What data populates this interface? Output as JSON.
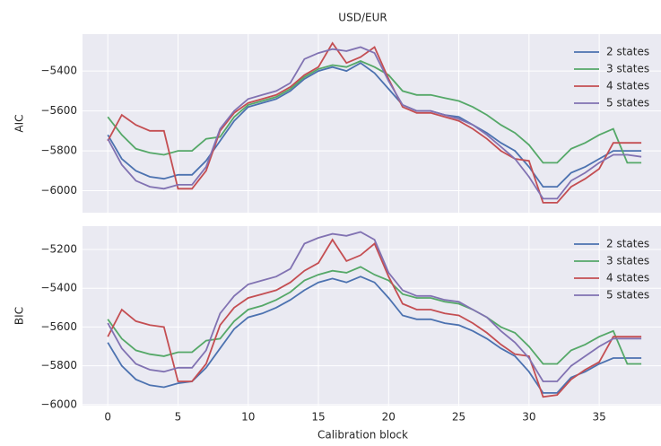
{
  "chart_data": [
    {
      "type": "line",
      "title": "USD/EUR",
      "ylabel": "AIC",
      "x": [
        0,
        1,
        2,
        3,
        4,
        5,
        6,
        7,
        8,
        9,
        10,
        11,
        12,
        13,
        14,
        15,
        16,
        17,
        18,
        19,
        20,
        21,
        22,
        23,
        24,
        25,
        26,
        27,
        28,
        29,
        30,
        31,
        32,
        33,
        34,
        35,
        36,
        37,
        38
      ],
      "xlim": [
        -1.8,
        39.4
      ],
      "xticks": [
        0,
        5,
        10,
        15,
        20,
        25,
        30,
        35
      ],
      "ylim": [
        -6110,
        -5215
      ],
      "yticks": [
        {
          "value": -6000,
          "label": "−6000"
        },
        {
          "value": -5800,
          "label": "−5800"
        },
        {
          "value": -5600,
          "label": "−5600"
        },
        {
          "value": -5400,
          "label": "−5400"
        }
      ],
      "grid": true,
      "legend": "upper right",
      "series": [
        {
          "name": "2 states",
          "color": "#4c72b0",
          "values": [
            -5720,
            -5840,
            -5900,
            -5930,
            -5940,
            -5920,
            -5920,
            -5850,
            -5750,
            -5650,
            -5580,
            -5560,
            -5540,
            -5500,
            -5440,
            -5400,
            -5380,
            -5400,
            -5360,
            -5410,
            -5490,
            -5570,
            -5600,
            -5600,
            -5620,
            -5630,
            -5670,
            -5710,
            -5760,
            -5800,
            -5880,
            -5980,
            -5980,
            -5910,
            -5880,
            -5840,
            -5800,
            -5800,
            -5800
          ]
        },
        {
          "name": "3 states",
          "color": "#55a868",
          "values": [
            -5630,
            -5720,
            -5790,
            -5810,
            -5820,
            -5800,
            -5800,
            -5740,
            -5730,
            -5630,
            -5570,
            -5550,
            -5530,
            -5490,
            -5430,
            -5390,
            -5370,
            -5380,
            -5350,
            -5380,
            -5420,
            -5500,
            -5520,
            -5520,
            -5535,
            -5550,
            -5580,
            -5620,
            -5670,
            -5710,
            -5770,
            -5860,
            -5860,
            -5790,
            -5760,
            -5720,
            -5690,
            -5860,
            -5860
          ]
        },
        {
          "name": "4 states",
          "color": "#c44e52",
          "values": [
            -5750,
            -5620,
            -5670,
            -5700,
            -5700,
            -5990,
            -5990,
            -5900,
            -5700,
            -5610,
            -5560,
            -5540,
            -5520,
            -5480,
            -5420,
            -5380,
            -5260,
            -5360,
            -5330,
            -5280,
            -5440,
            -5580,
            -5610,
            -5610,
            -5630,
            -5650,
            -5690,
            -5740,
            -5800,
            -5840,
            -5850,
            -6060,
            -6060,
            -5980,
            -5940,
            -5890,
            -5760,
            -5760,
            -5760
          ]
        },
        {
          "name": "5 states",
          "color": "#8172b2",
          "values": [
            -5740,
            -5870,
            -5950,
            -5980,
            -5990,
            -5970,
            -5970,
            -5880,
            -5690,
            -5600,
            -5540,
            -5520,
            -5500,
            -5460,
            -5340,
            -5310,
            -5290,
            -5300,
            -5280,
            -5310,
            -5450,
            -5570,
            -5600,
            -5600,
            -5620,
            -5640,
            -5670,
            -5720,
            -5780,
            -5840,
            -5930,
            -6040,
            -6040,
            -5950,
            -5910,
            -5860,
            -5820,
            -5820,
            -5830
          ]
        }
      ]
    },
    {
      "type": "line",
      "ylabel": "BIC",
      "xlabel": "Calibration block",
      "x": [
        0,
        1,
        2,
        3,
        4,
        5,
        6,
        7,
        8,
        9,
        10,
        11,
        12,
        13,
        14,
        15,
        16,
        17,
        18,
        19,
        20,
        21,
        22,
        23,
        24,
        25,
        26,
        27,
        28,
        29,
        30,
        31,
        32,
        33,
        34,
        35,
        36,
        37,
        38
      ],
      "xlim": [
        -1.8,
        39.4
      ],
      "xticks": [
        0,
        5,
        10,
        15,
        20,
        25,
        30,
        35
      ],
      "ylim": [
        -6005,
        -5080
      ],
      "yticks": [
        {
          "value": -6000,
          "label": "−6000"
        },
        {
          "value": -5800,
          "label": "−5800"
        },
        {
          "value": -5600,
          "label": "−5600"
        },
        {
          "value": -5400,
          "label": "−5400"
        },
        {
          "value": -5200,
          "label": "−5200"
        }
      ],
      "grid": true,
      "legend": "upper right",
      "series": [
        {
          "name": "2 states",
          "color": "#4c72b0",
          "values": [
            -5680,
            -5800,
            -5870,
            -5900,
            -5910,
            -5890,
            -5880,
            -5810,
            -5710,
            -5610,
            -5550,
            -5530,
            -5500,
            -5460,
            -5410,
            -5370,
            -5350,
            -5370,
            -5340,
            -5370,
            -5450,
            -5540,
            -5560,
            -5560,
            -5580,
            -5590,
            -5620,
            -5660,
            -5710,
            -5750,
            -5830,
            -5940,
            -5940,
            -5860,
            -5830,
            -5790,
            -5760,
            -5760,
            -5760
          ]
        },
        {
          "name": "3 states",
          "color": "#55a868",
          "values": [
            -5560,
            -5660,
            -5720,
            -5740,
            -5750,
            -5730,
            -5730,
            -5670,
            -5660,
            -5570,
            -5510,
            -5490,
            -5460,
            -5420,
            -5360,
            -5330,
            -5310,
            -5320,
            -5290,
            -5330,
            -5360,
            -5430,
            -5450,
            -5450,
            -5470,
            -5480,
            -5510,
            -5550,
            -5600,
            -5630,
            -5700,
            -5790,
            -5790,
            -5720,
            -5690,
            -5650,
            -5620,
            -5790,
            -5790
          ]
        },
        {
          "name": "4 states",
          "color": "#c44e52",
          "values": [
            -5650,
            -5510,
            -5570,
            -5590,
            -5600,
            -5880,
            -5880,
            -5790,
            -5590,
            -5500,
            -5450,
            -5430,
            -5410,
            -5370,
            -5310,
            -5270,
            -5150,
            -5260,
            -5230,
            -5170,
            -5340,
            -5480,
            -5510,
            -5510,
            -5530,
            -5540,
            -5580,
            -5630,
            -5690,
            -5740,
            -5750,
            -5960,
            -5950,
            -5870,
            -5820,
            -5780,
            -5650,
            -5650,
            -5650
          ]
        },
        {
          "name": "5 states",
          "color": "#8172b2",
          "values": [
            -5580,
            -5710,
            -5790,
            -5820,
            -5830,
            -5810,
            -5810,
            -5720,
            -5530,
            -5440,
            -5380,
            -5360,
            -5340,
            -5300,
            -5170,
            -5140,
            -5120,
            -5130,
            -5110,
            -5150,
            -5320,
            -5410,
            -5440,
            -5440,
            -5460,
            -5470,
            -5510,
            -5550,
            -5620,
            -5680,
            -5760,
            -5880,
            -5880,
            -5800,
            -5750,
            -5700,
            -5660,
            -5660,
            -5660
          ]
        }
      ]
    }
  ]
}
